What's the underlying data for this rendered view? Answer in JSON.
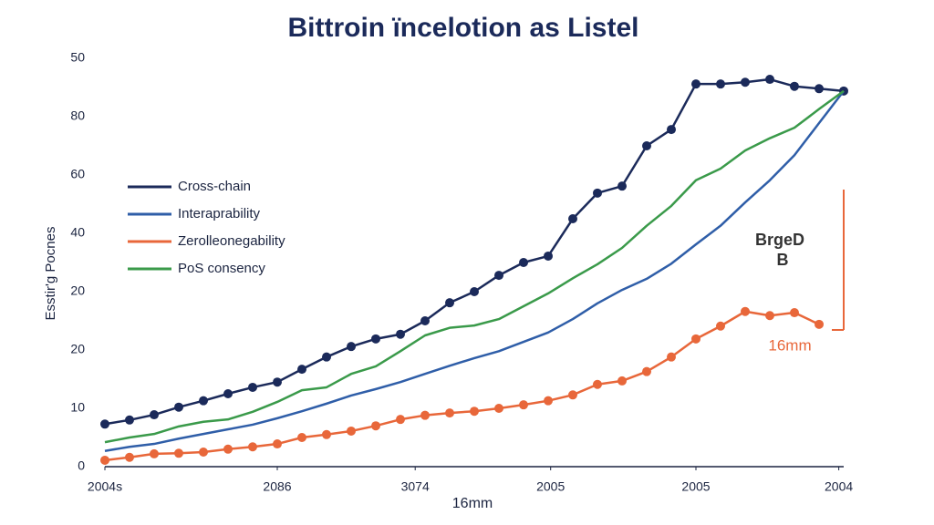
{
  "chart_data": {
    "type": "line",
    "title": "Bittroin ïncelotion as Listel",
    "x_label": "16mm",
    "y_label": "Esstir'g Pocnes",
    "x": [
      0,
      1,
      2,
      3,
      4,
      5,
      6,
      7,
      8,
      9,
      10,
      11,
      12,
      13,
      14,
      15,
      16,
      17,
      18,
      19,
      20,
      21,
      22,
      23,
      24,
      25,
      26,
      27,
      28,
      29,
      30
    ],
    "xlim": [
      0,
      30
    ],
    "xticks": [
      {
        "value": 0,
        "label": "2004s"
      },
      {
        "value": 7,
        "label": "2086"
      },
      {
        "value": 12.6,
        "label": "3074"
      },
      {
        "value": 18.1,
        "label": "2005"
      },
      {
        "value": 24,
        "label": "2005"
      },
      {
        "value": 29.8,
        "label": "2004"
      }
    ],
    "ylim": [
      0,
      70
    ],
    "yticks": [
      0,
      10,
      {
        "value": 20,
        "label": "20"
      },
      {
        "value": 30,
        "label": "20"
      },
      {
        "value": 40,
        "label": "40"
      },
      {
        "value": 50,
        "label": "60"
      },
      {
        "value": 60,
        "label": "80"
      },
      {
        "value": 70,
        "label": "50"
      }
    ],
    "grid": false,
    "legend": "upper left",
    "series": [
      {
        "name": "Cross-chain",
        "color": "#1b2a5a",
        "markers": true,
        "values": [
          7.3,
          8.0,
          8.9,
          10.2,
          11.3,
          12.5,
          13.6,
          14.5,
          16.7,
          18.8,
          20.6,
          21.9,
          22.7,
          25.0,
          28.1,
          30.0,
          32.8,
          35.0,
          36.1,
          42.5,
          46.9,
          48.1,
          55.0,
          57.8,
          65.6,
          65.6,
          65.9,
          66.4,
          65.2,
          64.8,
          64.4
        ]
      },
      {
        "name": "Interaprability",
        "color": "#2f5ea8",
        "markers": false,
        "values": [
          2.7,
          3.4,
          3.9,
          4.8,
          5.6,
          6.4,
          7.2,
          8.3,
          9.5,
          10.8,
          12.2,
          13.3,
          14.5,
          15.9,
          17.3,
          18.6,
          19.8,
          21.4,
          23.0,
          25.3,
          28.0,
          30.3,
          32.2,
          34.8,
          38.1,
          41.3,
          45.3,
          49.1,
          53.4,
          58.9,
          64.4
        ]
      },
      {
        "name": "Zerolleonegability",
        "color": "#e8673a",
        "markers": true,
        "values": [
          1.1,
          1.6,
          2.2,
          2.3,
          2.5,
          3.0,
          3.4,
          3.9,
          5.0,
          5.5,
          6.1,
          7.0,
          8.1,
          8.8,
          9.2,
          9.5,
          10.0,
          10.6,
          11.3,
          12.3,
          14.1,
          14.7,
          16.3,
          18.8,
          21.9,
          24.1,
          26.6,
          25.9,
          26.4,
          24.4,
          null
        ]
      },
      {
        "name": "PoS consency",
        "color": "#3a9a4a",
        "markers": false,
        "values": [
          4.2,
          5.0,
          5.6,
          6.9,
          7.7,
          8.1,
          9.4,
          11.1,
          13.1,
          13.6,
          15.9,
          17.2,
          19.8,
          22.5,
          23.8,
          24.2,
          25.3,
          27.5,
          29.7,
          32.3,
          34.7,
          37.5,
          41.3,
          44.7,
          49.1,
          51.1,
          54.2,
          56.3,
          58.1,
          61.3,
          64.4
        ]
      }
    ],
    "annotations": [
      "BrgeD",
      "B",
      "16mm"
    ]
  }
}
